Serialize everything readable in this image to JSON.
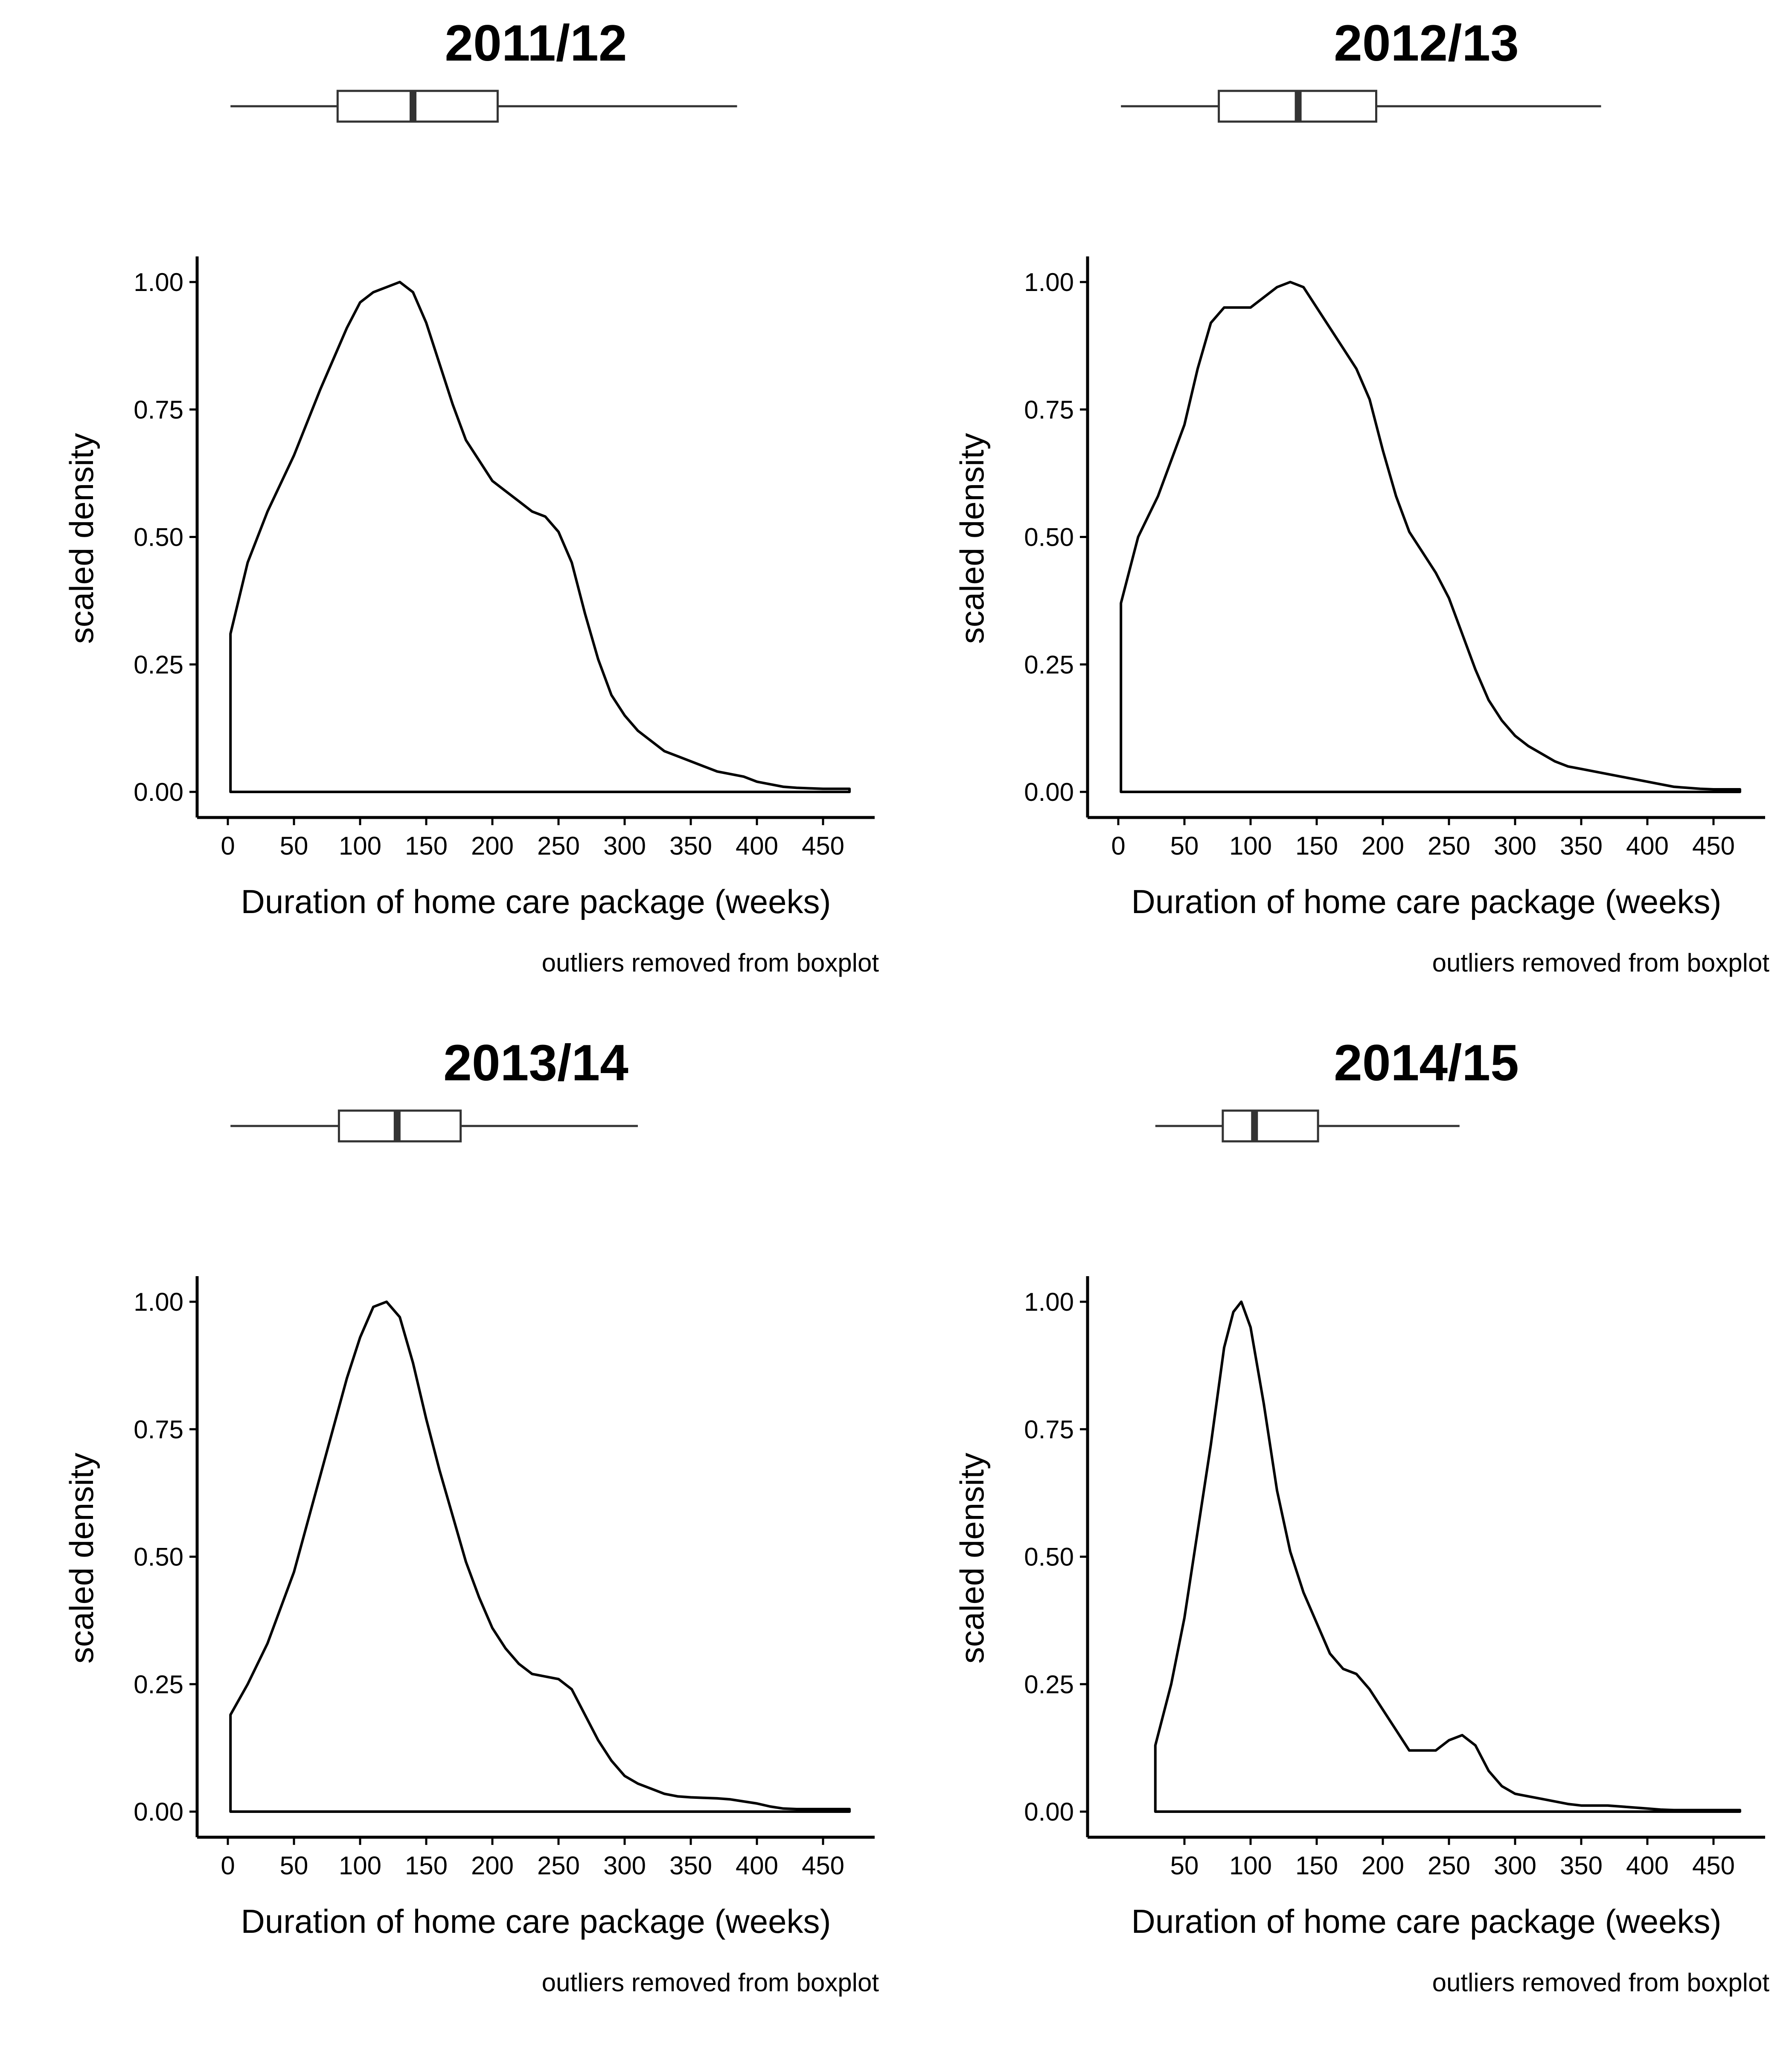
{
  "chart_data": [
    {
      "type": "density",
      "title": "2011/12",
      "xlabel": "Duration of home care package (weeks)",
      "ylabel": "scaled density",
      "caption": "outliers removed from boxplot",
      "x_ticks": [
        0,
        50,
        100,
        150,
        200,
        250,
        300,
        350,
        400,
        450
      ],
      "y_ticks": [
        "0.00",
        "0.25",
        "0.50",
        "0.75",
        "1.00"
      ],
      "xlim": [
        0,
        470
      ],
      "ylim": [
        0,
        1
      ],
      "boxplot": {
        "whisker_low": 2,
        "q1": 83,
        "median": 140,
        "q3": 204,
        "whisker_high": 385
      },
      "density": {
        "x": [
          2,
          15,
          30,
          50,
          70,
          90,
          100,
          110,
          120,
          130,
          140,
          150,
          160,
          170,
          180,
          190,
          200,
          210,
          220,
          230,
          240,
          250,
          260,
          270,
          280,
          290,
          300,
          310,
          320,
          330,
          340,
          350,
          360,
          370,
          380,
          390,
          400,
          410,
          420,
          430,
          440,
          450,
          460,
          470
        ],
        "y": [
          0.31,
          0.45,
          0.55,
          0.66,
          0.79,
          0.91,
          0.96,
          0.98,
          0.99,
          1.0,
          0.98,
          0.92,
          0.84,
          0.76,
          0.69,
          0.65,
          0.61,
          0.59,
          0.57,
          0.55,
          0.54,
          0.51,
          0.45,
          0.35,
          0.26,
          0.19,
          0.15,
          0.12,
          0.1,
          0.08,
          0.07,
          0.06,
          0.05,
          0.04,
          0.035,
          0.03,
          0.02,
          0.015,
          0.01,
          0.008,
          0.007,
          0.006,
          0.006,
          0.006
        ]
      }
    },
    {
      "type": "density",
      "title": "2012/13",
      "xlabel": "Duration of home care package (weeks)",
      "ylabel": "scaled density",
      "caption": "outliers removed from boxplot",
      "x_ticks": [
        0,
        50,
        100,
        150,
        200,
        250,
        300,
        350,
        400,
        450
      ],
      "y_ticks": [
        "0.00",
        "0.25",
        "0.50",
        "0.75",
        "1.00"
      ],
      "xlim": [
        0,
        470
      ],
      "ylim": [
        0,
        1
      ],
      "boxplot": {
        "whisker_low": 2,
        "q1": 76,
        "median": 136,
        "q3": 195,
        "whisker_high": 365
      },
      "density": {
        "x": [
          2,
          15,
          30,
          50,
          60,
          70,
          80,
          90,
          100,
          110,
          120,
          130,
          140,
          150,
          160,
          170,
          180,
          190,
          200,
          210,
          220,
          230,
          240,
          250,
          260,
          270,
          280,
          290,
          300,
          310,
          320,
          330,
          340,
          350,
          360,
          370,
          380,
          390,
          400,
          410,
          420,
          430,
          440,
          450,
          460,
          470
        ],
        "y": [
          0.37,
          0.5,
          0.58,
          0.72,
          0.83,
          0.92,
          0.95,
          0.95,
          0.95,
          0.97,
          0.99,
          1.0,
          0.99,
          0.95,
          0.91,
          0.87,
          0.83,
          0.77,
          0.67,
          0.58,
          0.51,
          0.47,
          0.43,
          0.38,
          0.31,
          0.24,
          0.18,
          0.14,
          0.11,
          0.09,
          0.075,
          0.06,
          0.05,
          0.045,
          0.04,
          0.035,
          0.03,
          0.025,
          0.02,
          0.015,
          0.01,
          0.008,
          0.006,
          0.005,
          0.005,
          0.005
        ]
      }
    },
    {
      "type": "density",
      "title": "2013/14",
      "xlabel": "Duration of home care package (weeks)",
      "ylabel": "scaled density",
      "caption": "outliers removed from boxplot",
      "x_ticks": [
        0,
        50,
        100,
        150,
        200,
        250,
        300,
        350,
        400,
        450
      ],
      "y_ticks": [
        "0.00",
        "0.25",
        "0.50",
        "0.75",
        "1.00"
      ],
      "xlim": [
        0,
        470
      ],
      "ylim": [
        0,
        1
      ],
      "boxplot": {
        "whisker_low": 2,
        "q1": 84,
        "median": 128,
        "q3": 176,
        "whisker_high": 310
      },
      "density": {
        "x": [
          2,
          15,
          30,
          50,
          70,
          90,
          100,
          110,
          120,
          130,
          140,
          150,
          160,
          170,
          180,
          190,
          200,
          210,
          220,
          230,
          240,
          250,
          260,
          270,
          280,
          290,
          300,
          310,
          320,
          330,
          340,
          350,
          360,
          370,
          380,
          390,
          400,
          410,
          420,
          430,
          440,
          450,
          460,
          470
        ],
        "y": [
          0.19,
          0.25,
          0.33,
          0.47,
          0.66,
          0.85,
          0.93,
          0.99,
          1.0,
          0.97,
          0.88,
          0.77,
          0.67,
          0.58,
          0.49,
          0.42,
          0.36,
          0.32,
          0.29,
          0.27,
          0.265,
          0.26,
          0.24,
          0.19,
          0.14,
          0.1,
          0.07,
          0.055,
          0.045,
          0.035,
          0.03,
          0.028,
          0.027,
          0.026,
          0.024,
          0.02,
          0.016,
          0.01,
          0.006,
          0.005,
          0.005,
          0.005,
          0.005,
          0.005
        ]
      }
    },
    {
      "type": "density",
      "title": "2014/15",
      "xlabel": "Duration of home care package (weeks)",
      "ylabel": "scaled density",
      "caption": "outliers removed from boxplot",
      "x_ticks": [
        50,
        100,
        150,
        200,
        250,
        300,
        350,
        400,
        450
      ],
      "y_ticks": [
        "0.00",
        "0.25",
        "0.50",
        "0.75",
        "1.00"
      ],
      "xlim": [
        28,
        470
      ],
      "ylim": [
        0,
        1
      ],
      "boxplot": {
        "whisker_low": 28,
        "q1": 79,
        "median": 103,
        "q3": 151,
        "whisker_high": 258
      },
      "density": {
        "x": [
          28,
          40,
          50,
          60,
          70,
          80,
          87,
          93,
          100,
          110,
          120,
          130,
          140,
          150,
          160,
          170,
          180,
          190,
          200,
          210,
          220,
          230,
          240,
          250,
          260,
          270,
          280,
          290,
          300,
          310,
          320,
          330,
          340,
          350,
          360,
          370,
          380,
          390,
          400,
          410,
          420,
          430,
          440,
          450,
          460,
          470
        ],
        "y": [
          0.13,
          0.25,
          0.38,
          0.55,
          0.72,
          0.91,
          0.98,
          1.0,
          0.95,
          0.8,
          0.63,
          0.51,
          0.43,
          0.37,
          0.31,
          0.28,
          0.27,
          0.24,
          0.2,
          0.16,
          0.12,
          0.12,
          0.12,
          0.14,
          0.15,
          0.13,
          0.08,
          0.05,
          0.035,
          0.03,
          0.025,
          0.02,
          0.015,
          0.012,
          0.012,
          0.012,
          0.01,
          0.008,
          0.006,
          0.004,
          0.003,
          0.003,
          0.003,
          0.003,
          0.003,
          0.003
        ]
      }
    }
  ]
}
